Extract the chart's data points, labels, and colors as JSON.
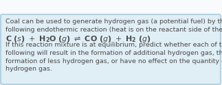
{
  "background_color": "#e0eef5",
  "border_color": "#9cc4d8",
  "text_color": "#4a4a4a",
  "fig_bg": "#f8fafc",
  "line1": "Coal can be used to generate hydrogen gas (a potential fuel) by the",
  "line2": "following endothermic reaction (heat is on the reactant side of the equation).",
  "line4": "If this reaction mixture is at equilibrium, predict whether each of the",
  "line5": "following will result in the formation of additional hydrogen gas, the",
  "line6": "formation of less hydrogen gas, or have no effect on the quantity of",
  "line7": "hydrogen gas.",
  "font_size": 6.8,
  "font_size_eq": 8.0
}
